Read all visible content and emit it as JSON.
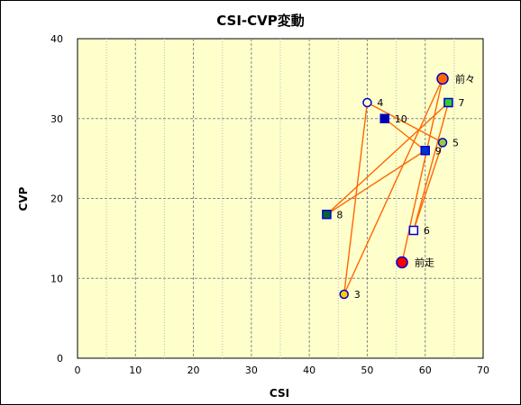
{
  "chart_data": {
    "type": "scatter",
    "title": "CSI-CVP変動",
    "xlabel": "CSI",
    "ylabel": "CVP",
    "xlim": [
      0,
      70
    ],
    "ylim": [
      0,
      40
    ],
    "xticks": [
      0,
      10,
      20,
      30,
      40,
      50,
      60,
      70
    ],
    "yticks": [
      0,
      10,
      20,
      30,
      40
    ],
    "grid": true,
    "plot_background": "#ffffcc",
    "line_color": "#ff6600",
    "connection_order": [
      "前走",
      "前々",
      "3",
      "4",
      "5",
      "6",
      "7",
      "8",
      "9",
      "10"
    ],
    "points": [
      {
        "label": "前走",
        "x": 56,
        "y": 12,
        "shape": "circle",
        "fill": "#ff0000",
        "stroke": "#0000cc",
        "size": "large"
      },
      {
        "label": "前々",
        "x": 63,
        "y": 35,
        "shape": "circle",
        "fill": "#ff6600",
        "stroke": "#0000cc",
        "size": "large"
      },
      {
        "label": "3",
        "x": 46,
        "y": 8,
        "shape": "circle",
        "fill": "#ffcc00",
        "stroke": "#0000cc",
        "size": "small"
      },
      {
        "label": "4",
        "x": 50,
        "y": 32,
        "shape": "circle",
        "fill": "#ffffcc",
        "stroke": "#0000cc",
        "size": "small"
      },
      {
        "label": "5",
        "x": 63,
        "y": 27,
        "shape": "circle",
        "fill": "#99cc33",
        "stroke": "#0000cc",
        "size": "small"
      },
      {
        "label": "6",
        "x": 58,
        "y": 16,
        "shape": "square",
        "fill": "#ffffff",
        "stroke": "#0000cc",
        "size": "small"
      },
      {
        "label": "7",
        "x": 64,
        "y": 32,
        "shape": "square",
        "fill": "#33cc33",
        "stroke": "#0000cc",
        "size": "small"
      },
      {
        "label": "8",
        "x": 43,
        "y": 18,
        "shape": "square",
        "fill": "#006633",
        "stroke": "#0000cc",
        "size": "small"
      },
      {
        "label": "9",
        "x": 60,
        "y": 26,
        "shape": "square",
        "fill": "#0033cc",
        "stroke": "#0000cc",
        "size": "small"
      },
      {
        "label": "10",
        "x": 53,
        "y": 30,
        "shape": "square",
        "fill": "#0000aa",
        "stroke": "#0000cc",
        "size": "small"
      }
    ]
  }
}
